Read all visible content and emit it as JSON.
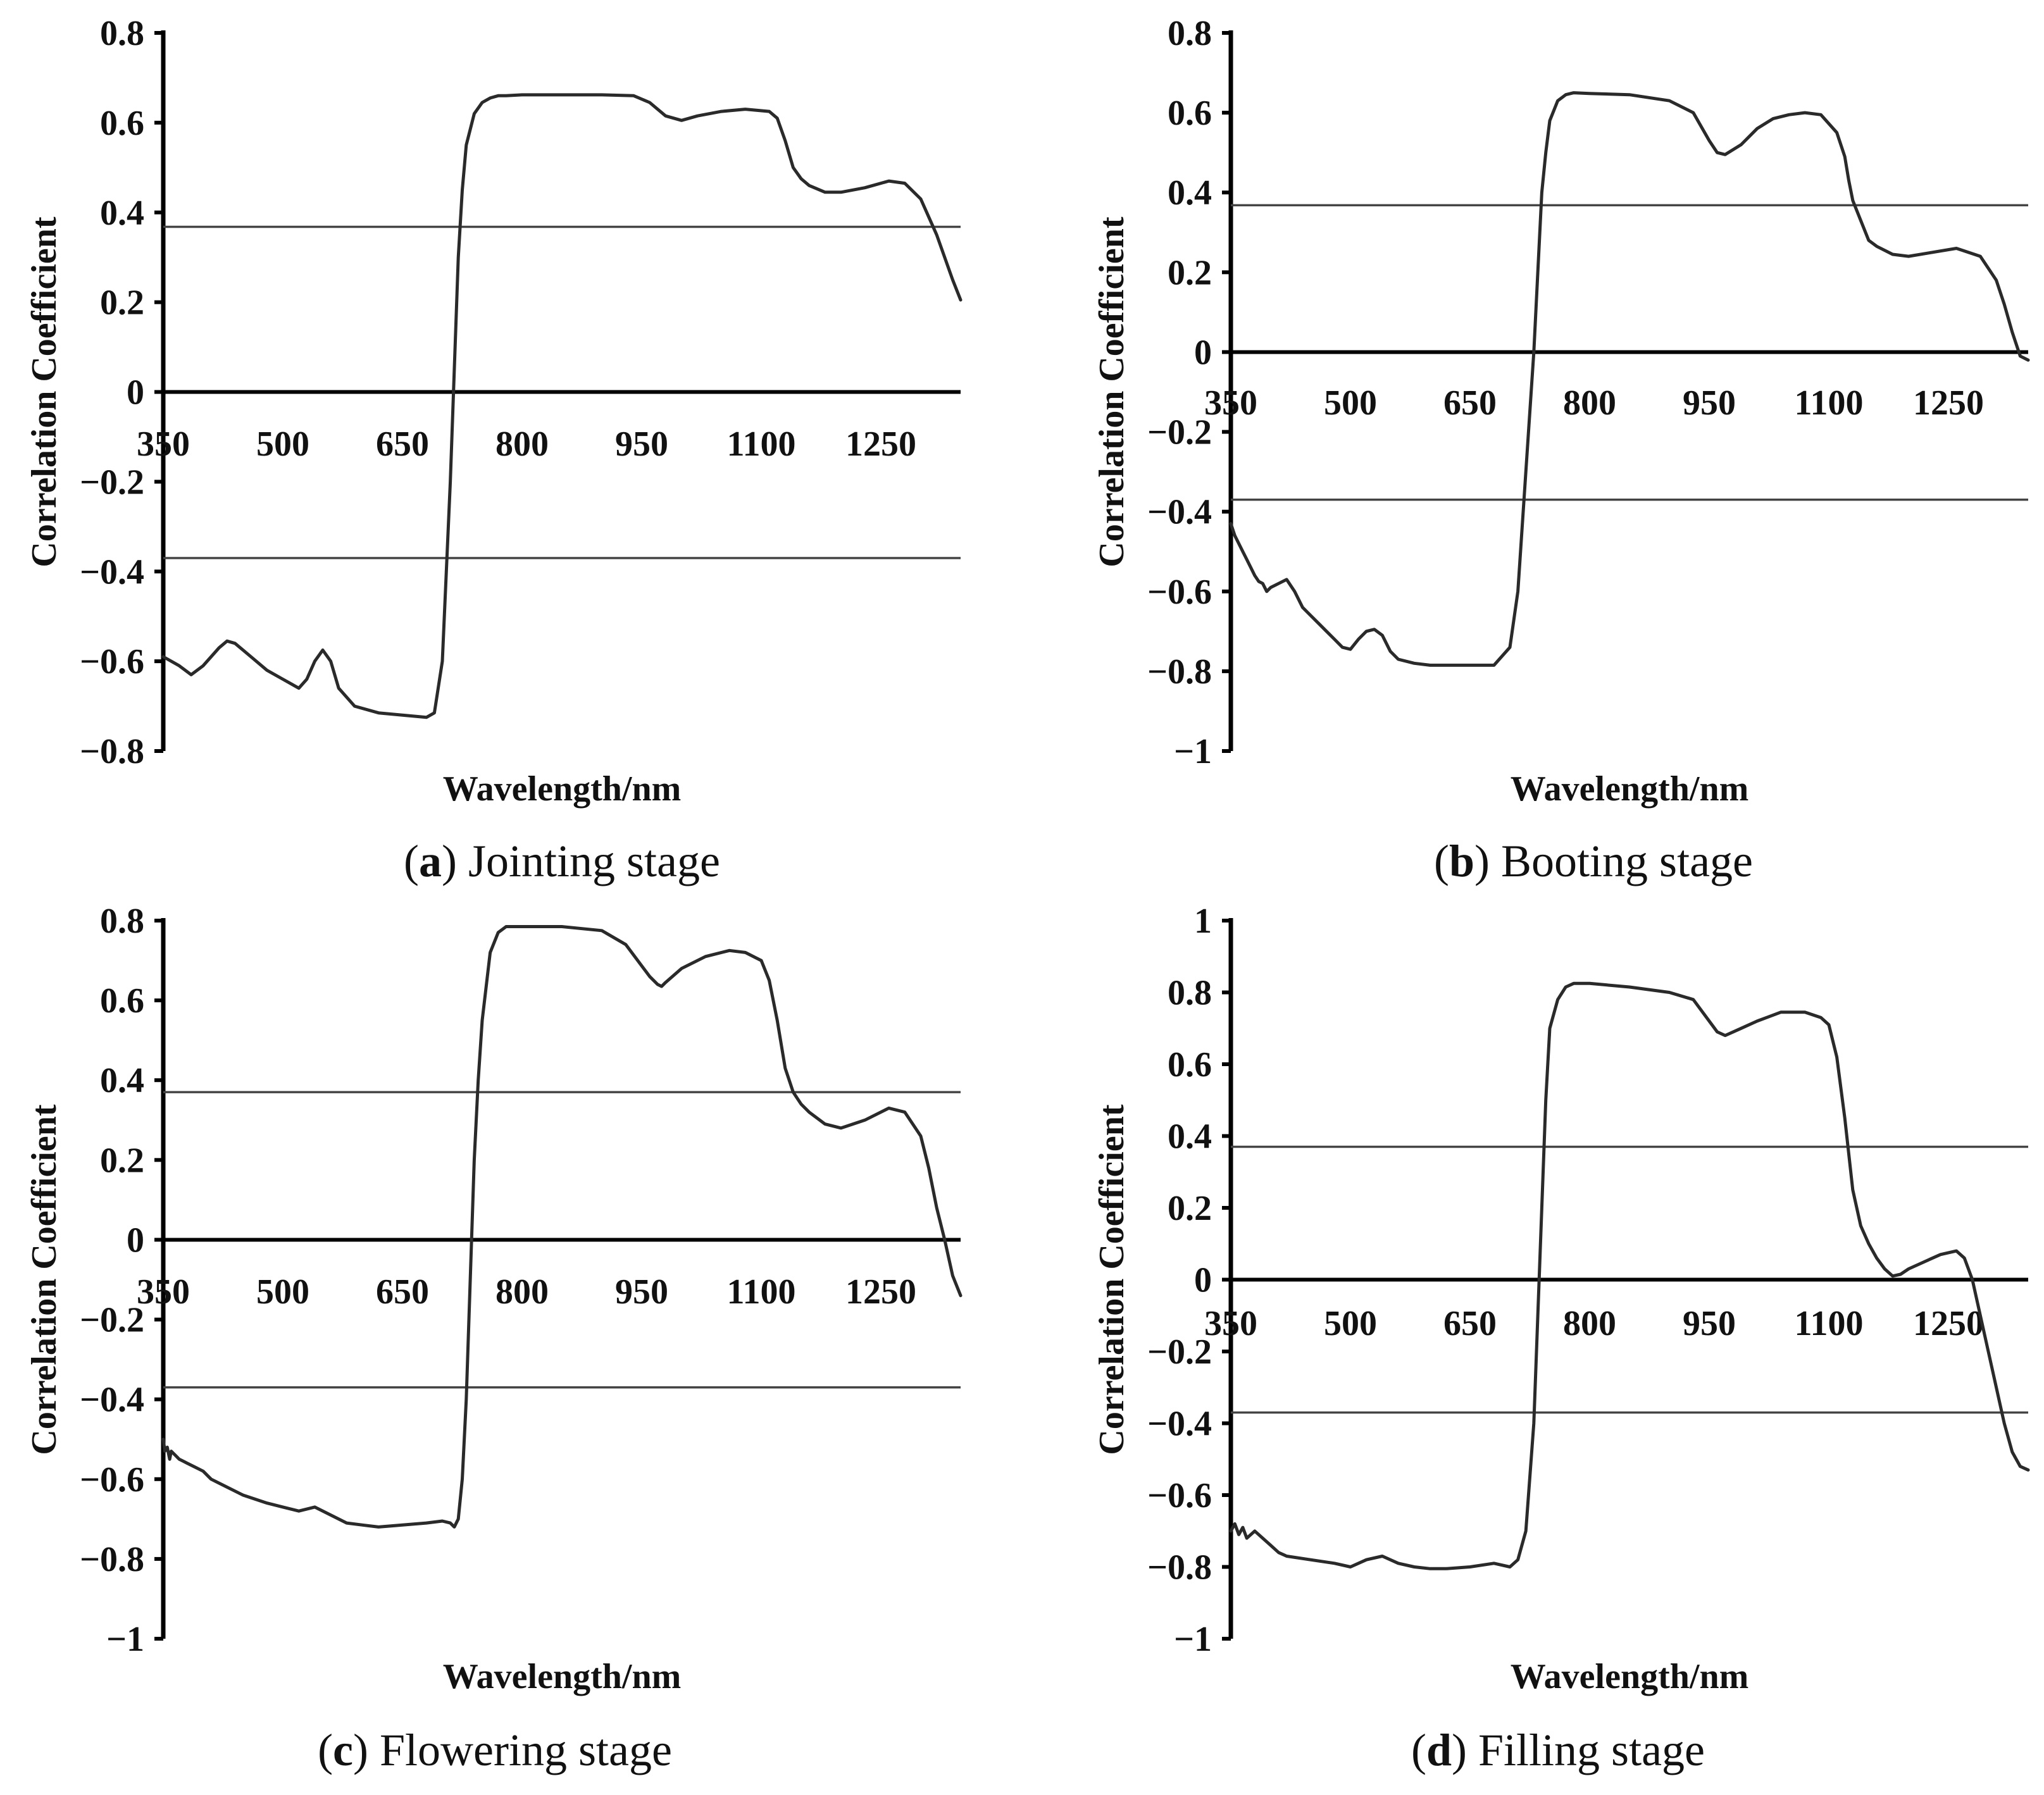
{
  "chart_data": [
    {
      "type": "line",
      "panel": "a",
      "caption_letter": "a",
      "caption_text": " Jointing stage",
      "xlabel": "Wavelength/nm",
      "ylabel": "Correlation Coefficient",
      "xlim": [
        350,
        1350
      ],
      "ylim": [
        -0.8,
        0.8
      ],
      "x_ticks": [
        "350",
        "500",
        "650",
        "800",
        "950",
        "1100",
        "1250"
      ],
      "y_ticks": [
        {
          "value": 0.8,
          "label": "0.8"
        },
        {
          "value": 0.6,
          "label": "0.6"
        },
        {
          "value": 0.4,
          "label": "0.4"
        },
        {
          "value": 0.2,
          "label": "0.2"
        },
        {
          "value": 0,
          "label": "0"
        },
        {
          "value": -0.2,
          "label": "−0.2"
        },
        {
          "value": -0.4,
          "label": "−0.4"
        },
        {
          "value": -0.6,
          "label": "−0.6"
        },
        {
          "value": -0.8,
          "label": "−0.8"
        }
      ],
      "thresholds": [
        0.368,
        -0.37
      ],
      "series": [
        {
          "name": "Correlation Coefficient",
          "x": [
            350,
            360,
            370,
            385,
            400,
            420,
            430,
            440,
            460,
            480,
            500,
            510,
            520,
            530,
            540,
            550,
            560,
            570,
            590,
            620,
            650,
            680,
            690,
            700,
            705,
            710,
            715,
            720,
            725,
            730,
            740,
            750,
            760,
            770,
            780,
            800,
            850,
            900,
            940,
            960,
            980,
            1000,
            1020,
            1050,
            1080,
            1110,
            1120,
            1130,
            1140,
            1150,
            1160,
            1180,
            1200,
            1230,
            1260,
            1280,
            1300,
            1320,
            1340,
            1350
          ],
          "y": [
            -0.59,
            -0.6,
            -0.61,
            -0.63,
            -0.61,
            -0.57,
            -0.555,
            -0.56,
            -0.59,
            -0.62,
            -0.64,
            -0.65,
            -0.66,
            -0.64,
            -0.6,
            -0.575,
            -0.6,
            -0.66,
            -0.7,
            -0.715,
            -0.72,
            -0.725,
            -0.715,
            -0.6,
            -0.4,
            -0.2,
            0.05,
            0.3,
            0.45,
            0.55,
            0.62,
            0.645,
            0.655,
            0.66,
            0.66,
            0.662,
            0.662,
            0.662,
            0.66,
            0.645,
            0.615,
            0.605,
            0.615,
            0.625,
            0.63,
            0.625,
            0.61,
            0.56,
            0.5,
            0.475,
            0.46,
            0.445,
            0.445,
            0.455,
            0.47,
            0.465,
            0.43,
            0.35,
            0.25,
            0.205
          ]
        }
      ]
    },
    {
      "type": "line",
      "panel": "b",
      "caption_letter": "b",
      "caption_text": " Booting stage",
      "xlabel": "Wavelength/nm",
      "ylabel": "Correlation Coefficient",
      "xlim": [
        350,
        1350
      ],
      "ylim": [
        -1.0,
        0.8
      ],
      "x_ticks": [
        "350",
        "500",
        "650",
        "800",
        "950",
        "1100",
        "1250"
      ],
      "y_ticks": [
        {
          "value": 0.8,
          "label": "0.8"
        },
        {
          "value": 0.6,
          "label": "0.6"
        },
        {
          "value": 0.4,
          "label": "0.4"
        },
        {
          "value": 0.2,
          "label": "0.2"
        },
        {
          "value": 0,
          "label": "0"
        },
        {
          "value": -0.2,
          "label": "−0.2"
        },
        {
          "value": -0.4,
          "label": "−0.4"
        },
        {
          "value": -0.6,
          "label": "−0.6"
        },
        {
          "value": -0.8,
          "label": "−0.8"
        },
        {
          "value": -1,
          "label": "−1"
        }
      ],
      "thresholds": [
        0.368,
        -0.37
      ],
      "series": [
        {
          "name": "Correlation Coefficient",
          "x": [
            350,
            355,
            360,
            365,
            370,
            375,
            380,
            385,
            390,
            395,
            400,
            410,
            420,
            430,
            440,
            450,
            460,
            470,
            480,
            490,
            500,
            510,
            520,
            530,
            540,
            550,
            560,
            580,
            600,
            620,
            650,
            680,
            700,
            710,
            720,
            730,
            735,
            740,
            745,
            750,
            760,
            770,
            780,
            800,
            850,
            900,
            930,
            950,
            960,
            970,
            990,
            1010,
            1030,
            1050,
            1070,
            1090,
            1110,
            1120,
            1125,
            1130,
            1140,
            1150,
            1160,
            1180,
            1200,
            1230,
            1260,
            1290,
            1310,
            1320,
            1330,
            1340,
            1350
          ],
          "y": [
            -0.43,
            -0.46,
            -0.48,
            -0.5,
            -0.52,
            -0.54,
            -0.56,
            -0.575,
            -0.58,
            -0.6,
            -0.59,
            -0.58,
            -0.57,
            -0.6,
            -0.64,
            -0.66,
            -0.68,
            -0.7,
            -0.72,
            -0.74,
            -0.745,
            -0.72,
            -0.7,
            -0.695,
            -0.71,
            -0.75,
            -0.77,
            -0.78,
            -0.785,
            -0.785,
            -0.785,
            -0.785,
            -0.74,
            -0.6,
            -0.3,
            0.0,
            0.2,
            0.4,
            0.5,
            0.58,
            0.63,
            0.645,
            0.65,
            0.648,
            0.645,
            0.63,
            0.6,
            0.53,
            0.5,
            0.495,
            0.52,
            0.56,
            0.585,
            0.595,
            0.6,
            0.595,
            0.55,
            0.49,
            0.43,
            0.38,
            0.33,
            0.28,
            0.265,
            0.245,
            0.24,
            0.25,
            0.26,
            0.24,
            0.18,
            0.12,
            0.05,
            -0.01,
            -0.02
          ]
        }
      ]
    },
    {
      "type": "line",
      "panel": "c",
      "caption_letter": "c",
      "caption_text": " Flowering stage",
      "xlabel": "Wavelength/nm",
      "ylabel": "Correlation Coefficient",
      "xlim": [
        350,
        1350
      ],
      "ylim": [
        -1.0,
        0.8
      ],
      "x_ticks": [
        "350",
        "500",
        "650",
        "800",
        "950",
        "1100",
        "1250"
      ],
      "y_ticks": [
        {
          "value": 0.8,
          "label": "0.8"
        },
        {
          "value": 0.6,
          "label": "0.6"
        },
        {
          "value": 0.4,
          "label": "0.4"
        },
        {
          "value": 0.2,
          "label": "0.2"
        },
        {
          "value": 0,
          "label": "0"
        },
        {
          "value": -0.2,
          "label": "−0.2"
        },
        {
          "value": -0.4,
          "label": "−0.4"
        },
        {
          "value": -0.6,
          "label": "−0.6"
        },
        {
          "value": -0.8,
          "label": "−0.8"
        },
        {
          "value": -1,
          "label": "−1"
        }
      ],
      "thresholds": [
        0.37,
        -0.37
      ],
      "series": [
        {
          "name": "Correlation Coefficient",
          "x": [
            350,
            352,
            355,
            358,
            360,
            365,
            370,
            375,
            380,
            390,
            400,
            410,
            420,
            450,
            480,
            500,
            520,
            540,
            560,
            580,
            600,
            620,
            650,
            680,
            700,
            710,
            715,
            720,
            725,
            730,
            735,
            740,
            745,
            750,
            760,
            770,
            780,
            800,
            850,
            900,
            930,
            960,
            970,
            975,
            980,
            1000,
            1030,
            1060,
            1080,
            1100,
            1110,
            1120,
            1130,
            1140,
            1150,
            1160,
            1180,
            1200,
            1230,
            1260,
            1280,
            1300,
            1310,
            1320,
            1330,
            1340,
            1350
          ],
          "y": [
            -0.5,
            -0.53,
            -0.52,
            -0.55,
            -0.53,
            -0.54,
            -0.55,
            -0.555,
            -0.56,
            -0.57,
            -0.58,
            -0.6,
            -0.61,
            -0.64,
            -0.66,
            -0.67,
            -0.68,
            -0.67,
            -0.69,
            -0.71,
            -0.715,
            -0.72,
            -0.715,
            -0.71,
            -0.705,
            -0.71,
            -0.72,
            -0.7,
            -0.6,
            -0.4,
            -0.1,
            0.2,
            0.4,
            0.55,
            0.72,
            0.77,
            0.785,
            0.785,
            0.785,
            0.775,
            0.74,
            0.66,
            0.64,
            0.635,
            0.645,
            0.68,
            0.71,
            0.725,
            0.72,
            0.7,
            0.65,
            0.55,
            0.43,
            0.37,
            0.34,
            0.32,
            0.29,
            0.28,
            0.3,
            0.33,
            0.32,
            0.26,
            0.18,
            0.08,
            0.0,
            -0.09,
            -0.14
          ]
        }
      ]
    },
    {
      "type": "line",
      "panel": "d",
      "caption_letter": "d",
      "caption_text": " Filling stage",
      "xlabel": "Wavelength/nm",
      "ylabel": "Correlation Coefficient",
      "xlim": [
        350,
        1350
      ],
      "ylim": [
        -1.0,
        1.0
      ],
      "x_ticks": [
        "350",
        "500",
        "650",
        "800",
        "950",
        "1100",
        "1250"
      ],
      "y_ticks": [
        {
          "value": 1,
          "label": "1"
        },
        {
          "value": 0.8,
          "label": "0.8"
        },
        {
          "value": 0.6,
          "label": "0.6"
        },
        {
          "value": 0.4,
          "label": "0.4"
        },
        {
          "value": 0.2,
          "label": "0.2"
        },
        {
          "value": 0,
          "label": "0"
        },
        {
          "value": -0.2,
          "label": "−0.2"
        },
        {
          "value": -0.4,
          "label": "−0.4"
        },
        {
          "value": -0.6,
          "label": "−0.6"
        },
        {
          "value": -0.8,
          "label": "−0.8"
        },
        {
          "value": -1,
          "label": "−1"
        }
      ],
      "thresholds": [
        0.37,
        -0.37
      ],
      "series": [
        {
          "name": "Correlation Coefficient",
          "x": [
            350,
            355,
            360,
            365,
            370,
            380,
            390,
            400,
            410,
            420,
            450,
            480,
            500,
            520,
            540,
            560,
            580,
            600,
            620,
            650,
            680,
            700,
            710,
            720,
            730,
            735,
            740,
            745,
            750,
            760,
            770,
            780,
            800,
            850,
            900,
            930,
            950,
            960,
            970,
            990,
            1010,
            1040,
            1070,
            1090,
            1100,
            1110,
            1120,
            1130,
            1140,
            1150,
            1160,
            1170,
            1180,
            1190,
            1200,
            1220,
            1240,
            1260,
            1270,
            1280,
            1290,
            1300,
            1310,
            1320,
            1330,
            1340,
            1350
          ],
          "y": [
            -0.7,
            -0.68,
            -0.71,
            -0.69,
            -0.72,
            -0.7,
            -0.72,
            -0.74,
            -0.76,
            -0.77,
            -0.78,
            -0.79,
            -0.8,
            -0.78,
            -0.77,
            -0.79,
            -0.8,
            -0.805,
            -0.805,
            -0.8,
            -0.79,
            -0.8,
            -0.78,
            -0.7,
            -0.4,
            -0.1,
            0.2,
            0.5,
            0.7,
            0.78,
            0.815,
            0.825,
            0.825,
            0.815,
            0.8,
            0.78,
            0.72,
            0.69,
            0.68,
            0.7,
            0.72,
            0.745,
            0.745,
            0.73,
            0.71,
            0.62,
            0.45,
            0.25,
            0.15,
            0.1,
            0.06,
            0.03,
            0.01,
            0.015,
            0.03,
            0.05,
            0.07,
            0.08,
            0.06,
            0.0,
            -0.1,
            -0.2,
            -0.3,
            -0.4,
            -0.48,
            -0.52,
            -0.53
          ]
        }
      ]
    }
  ]
}
